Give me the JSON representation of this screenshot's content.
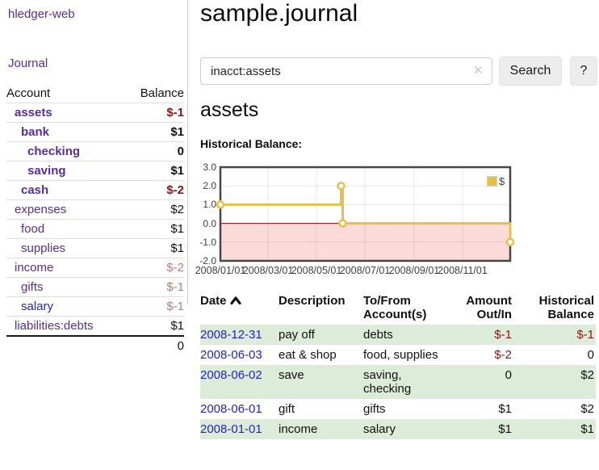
{
  "colors": {
    "accent_purple": "#5a2ca0",
    "link_blue": "#2222d4",
    "negative_strong": "#8b1515",
    "negative_muted": "#b97c7a",
    "row_green": "#dcecd8",
    "chart_line_gold": "#e6c04a",
    "chart_negative_pink": "#fbdada",
    "chart_zero_line": "#8b0000",
    "chart_border": "#474747"
  },
  "app": {
    "title": "hledger-web"
  },
  "sidebar": {
    "journal_link": "Journal",
    "accounts_table": {
      "header_account": "Account",
      "header_balance": "Balance",
      "rows": [
        {
          "name": "assets",
          "depth": 1,
          "in_account": true,
          "balance": "$-1",
          "balance_style": "negative-strong",
          "link_style": "visited"
        },
        {
          "name": "bank",
          "depth": 2,
          "in_account": true,
          "balance": "$1",
          "balance_style": "normal",
          "link_style": "visited"
        },
        {
          "name": "checking",
          "depth": 3,
          "in_account": true,
          "balance": "0",
          "balance_style": "normal",
          "link_style": "visited"
        },
        {
          "name": "saving",
          "depth": 3,
          "in_account": true,
          "balance": "$1",
          "balance_style": "normal",
          "link_style": "visited"
        },
        {
          "name": "cash",
          "depth": 2,
          "in_account": true,
          "balance": "$-2",
          "balance_style": "negative-strong",
          "link_style": "visited"
        },
        {
          "name": "expenses",
          "depth": 1,
          "in_account": false,
          "balance": "$2",
          "balance_style": "normal",
          "link_style": "visited"
        },
        {
          "name": "food",
          "depth": 2,
          "in_account": false,
          "balance": "$1",
          "balance_style": "normal",
          "link_style": "visited"
        },
        {
          "name": "supplies",
          "depth": 2,
          "in_account": false,
          "balance": "$1",
          "balance_style": "normal",
          "link_style": "visited"
        },
        {
          "name": "income",
          "depth": 1,
          "in_account": false,
          "balance": "$-2",
          "balance_style": "negative-muted",
          "link_style": "visited"
        },
        {
          "name": "gifts",
          "depth": 2,
          "in_account": false,
          "balance": "$-1",
          "balance_style": "negative-muted",
          "link_style": "visited"
        },
        {
          "name": "salary",
          "depth": 2,
          "in_account": false,
          "balance": "$-1",
          "balance_style": "negative-muted",
          "link_style": "unvisited"
        },
        {
          "name": "liabilities:debts",
          "depth": 1,
          "in_account": false,
          "balance": "$1",
          "balance_style": "normal",
          "link_style": "visited"
        }
      ],
      "total": "0"
    }
  },
  "main": {
    "title": "sample.journal",
    "search": {
      "value": "inacct:assets",
      "clear_icon": "✕",
      "button_label": "Search",
      "help_label": "?"
    },
    "account_heading": "assets",
    "chart_heading": "Historical Balance:"
  },
  "chart_data": {
    "type": "line",
    "title": "Historical Balance",
    "step": true,
    "legend": [
      {
        "label": "$",
        "color": "#e6c04a"
      }
    ],
    "legend_position": "top-right",
    "grid": true,
    "ylim": [
      -2.0,
      3.0
    ],
    "y_ticks": [
      "3.0",
      "2.0",
      "1.0",
      "0.0",
      "-1.0",
      "-2.0"
    ],
    "y_tick_values": [
      3,
      2,
      1,
      0,
      -1,
      -2
    ],
    "x_ticks": [
      "2008/01/01",
      "2008/03/01",
      "2008/05/01",
      "2008/07/01",
      "2008/09/01",
      "2008/11/01"
    ],
    "x_tick_dates": [
      "2008-01-01",
      "2008-03-01",
      "2008-05-01",
      "2008-07-01",
      "2008-09-01",
      "2008-11-01"
    ],
    "x_range": [
      "2008-01-01",
      "2008-12-31"
    ],
    "series": [
      {
        "name": "$",
        "points": [
          [
            "2008-01-01",
            1
          ],
          [
            "2008-06-01",
            2
          ],
          [
            "2008-06-03",
            0
          ],
          [
            "2008-12-31",
            -1
          ]
        ]
      }
    ],
    "negative_region_shaded": true
  },
  "transactions": {
    "sort": {
      "column": "Date",
      "direction": "ascending",
      "icon": "chevron-up-icon"
    },
    "headers": [
      "Date",
      "Description",
      "To/From Account(s)",
      "Amount Out/In",
      "Historical Balance"
    ],
    "rows": [
      {
        "date": "2008-12-31",
        "description": "pay off",
        "accounts": "debts",
        "amount": "$-1",
        "amount_negative": true,
        "balance": "$-1",
        "balance_negative": true
      },
      {
        "date": "2008-06-03",
        "description": "eat & shop",
        "accounts": "food, supplies",
        "amount": "$-2",
        "amount_negative": true,
        "balance": "0",
        "balance_negative": false
      },
      {
        "date": "2008-06-02",
        "description": "save",
        "accounts": "saving, checking",
        "amount": "0",
        "amount_negative": false,
        "balance": "$2",
        "balance_negative": false
      },
      {
        "date": "2008-06-01",
        "description": "gift",
        "accounts": "gifts",
        "amount": "$1",
        "amount_negative": false,
        "balance": "$2",
        "balance_negative": false
      },
      {
        "date": "2008-01-01",
        "description": "income",
        "accounts": "salary",
        "amount": "$1",
        "amount_negative": false,
        "balance": "$1",
        "balance_negative": false
      }
    ]
  }
}
